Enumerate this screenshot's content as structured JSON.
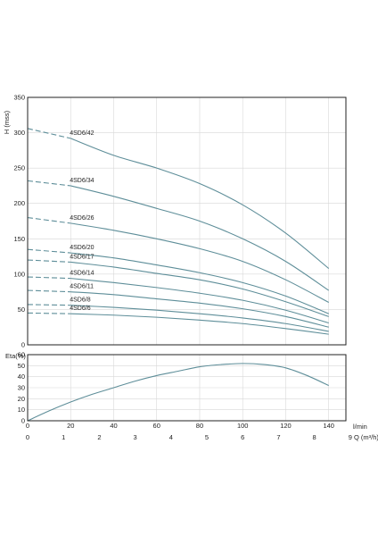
{
  "chart_data": [
    {
      "type": "line",
      "ylabel": "H (mss)",
      "xlim": [
        0,
        148
      ],
      "ylim": [
        0,
        350
      ],
      "xticks": [
        0,
        20,
        40,
        60,
        80,
        100,
        120,
        140
      ],
      "yticks": [
        0,
        50,
        100,
        150,
        200,
        250,
        300,
        350
      ],
      "grid": true,
      "dashed_until_x": 20,
      "series": [
        {
          "name": "4SD6/42",
          "x": [
            0,
            20,
            40,
            60,
            80,
            100,
            120,
            140
          ],
          "y": [
            306,
            292,
            268,
            250,
            228,
            198,
            158,
            108
          ]
        },
        {
          "name": "4SD6/34",
          "x": [
            0,
            20,
            40,
            60,
            80,
            100,
            120,
            140
          ],
          "y": [
            232,
            225,
            210,
            193,
            175,
            150,
            118,
            77
          ]
        },
        {
          "name": "4SD6/26",
          "x": [
            0,
            20,
            40,
            60,
            80,
            100,
            120,
            140
          ],
          "y": [
            180,
            172,
            162,
            150,
            136,
            118,
            92,
            60
          ]
        },
        {
          "name": "4SD6/20",
          "x": [
            0,
            20,
            40,
            60,
            80,
            100,
            120,
            140
          ],
          "y": [
            135,
            130,
            123,
            113,
            102,
            88,
            69,
            44
          ]
        },
        {
          "name": "4SD6/17",
          "x": [
            0,
            20,
            40,
            60,
            80,
            100,
            120,
            140
          ],
          "y": [
            120,
            117,
            110,
            101,
            92,
            79,
            61,
            40
          ]
        },
        {
          "name": "4SD6/14",
          "x": [
            0,
            20,
            40,
            60,
            80,
            100,
            120,
            140
          ],
          "y": [
            96,
            94,
            88,
            81,
            73,
            63,
            49,
            31
          ]
        },
        {
          "name": "4SD6/11",
          "x": [
            0,
            20,
            40,
            60,
            80,
            100,
            120,
            140
          ],
          "y": [
            77,
            75,
            71,
            65,
            59,
            51,
            40,
            25
          ]
        },
        {
          "name": "4SD6/8",
          "x": [
            0,
            20,
            40,
            60,
            80,
            100,
            120,
            140
          ],
          "y": [
            57,
            56,
            53,
            49,
            44,
            38,
            30,
            19
          ]
        },
        {
          "name": "4SD6/6",
          "x": [
            0,
            20,
            40,
            60,
            80,
            100,
            120,
            140
          ],
          "y": [
            45,
            44,
            42,
            39,
            35,
            30,
            23,
            15
          ]
        }
      ]
    },
    {
      "type": "line",
      "ylabel": "Eta(%)",
      "xlabel": "l/min",
      "xlabel2": "Q (m³/h)",
      "xlim": [
        0,
        148
      ],
      "ylim": [
        0,
        60
      ],
      "xticks": [
        0,
        20,
        40,
        60,
        80,
        100,
        120,
        140
      ],
      "yticks": [
        0,
        10,
        20,
        30,
        40,
        50,
        60
      ],
      "x2ticks": [
        0,
        1,
        2,
        3,
        4,
        5,
        6,
        7,
        8,
        9
      ],
      "x2_per_x": 0.06,
      "grid": true,
      "series": [
        {
          "name": "",
          "x": [
            0,
            10,
            20,
            30,
            40,
            50,
            60,
            70,
            80,
            90,
            100,
            110,
            120,
            130,
            140
          ],
          "y": [
            0,
            9,
            17,
            24,
            30,
            36,
            41,
            45,
            49,
            51,
            52,
            51,
            48,
            41,
            32
          ]
        }
      ]
    }
  ]
}
